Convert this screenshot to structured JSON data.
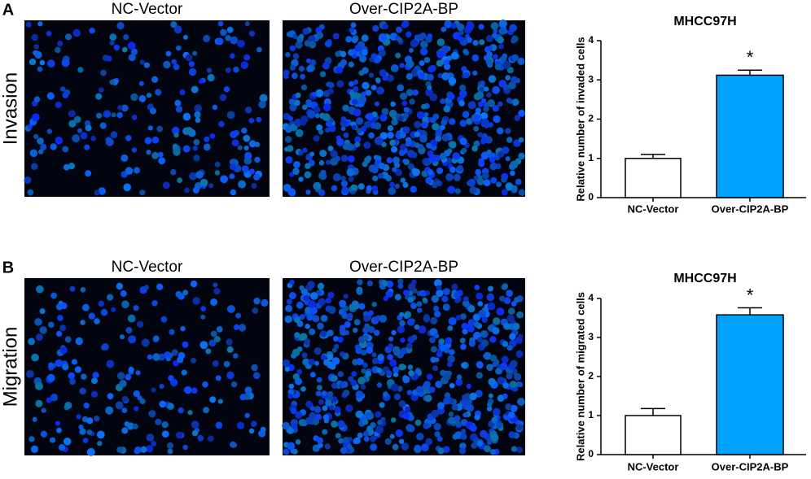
{
  "panels": [
    {
      "label": "A",
      "row_label": "Invasion",
      "image_titles": [
        "NC-Vector",
        "Over-CIP2A-BP"
      ]
    },
    {
      "label": "B",
      "row_label": "Migration",
      "image_titles": [
        "NC-Vector",
        "Over-CIP2A-BP"
      ]
    }
  ],
  "chart_data": [
    {
      "type": "bar",
      "title": "MHCC97H",
      "ylabel": "Relative number of invaded cells",
      "categories": [
        "NC-Vector",
        "Over-CIP2A-BP"
      ],
      "values": [
        1.0,
        3.12
      ],
      "errors": [
        0.1,
        0.13
      ],
      "colors": [
        "#ffffff",
        "#00a2ff"
      ],
      "ylim": [
        0,
        4
      ],
      "yticks": [
        0,
        1,
        2,
        3,
        4
      ],
      "annotations": [
        {
          "category": 1,
          "text": "*"
        }
      ]
    },
    {
      "type": "bar",
      "title": "MHCC97H",
      "ylabel": "Relative number of migrated cells",
      "categories": [
        "NC-Vector",
        "Over-CIP2A-BP"
      ],
      "values": [
        1.0,
        3.58
      ],
      "errors": [
        0.18,
        0.18
      ],
      "colors": [
        "#ffffff",
        "#00a2ff"
      ],
      "ylim": [
        0,
        4
      ],
      "yticks": [
        0,
        1,
        2,
        3,
        4
      ],
      "annotations": [
        {
          "category": 1,
          "text": "*"
        }
      ]
    }
  ]
}
